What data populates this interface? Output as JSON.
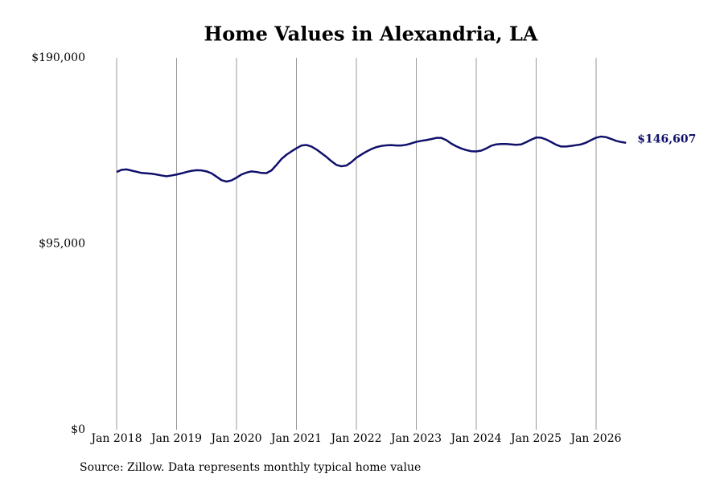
{
  "chart_data": {
    "type": "line",
    "title": "Home Values in Alexandria, LA",
    "source": "Source: Zillow. Data represents monthly typical home value",
    "color": "#10106b",
    "x": [
      "2018-01",
      "2018-02",
      "2018-03",
      "2018-04",
      "2018-05",
      "2018-06",
      "2018-07",
      "2018-08",
      "2018-09",
      "2018-10",
      "2018-11",
      "2018-12",
      "2019-01",
      "2019-02",
      "2019-03",
      "2019-04",
      "2019-05",
      "2019-06",
      "2019-07",
      "2019-08",
      "2019-09",
      "2019-10",
      "2019-11",
      "2019-12",
      "2020-01",
      "2020-02",
      "2020-03",
      "2020-04",
      "2020-05",
      "2020-06",
      "2020-07",
      "2020-08",
      "2020-09",
      "2020-10",
      "2020-11",
      "2020-12",
      "2021-01",
      "2021-02",
      "2021-03",
      "2021-04",
      "2021-05",
      "2021-06",
      "2021-07",
      "2021-08",
      "2021-09",
      "2021-10",
      "2021-11",
      "2021-12",
      "2022-01",
      "2022-02",
      "2022-03",
      "2022-04",
      "2022-05",
      "2022-06",
      "2022-07",
      "2022-08",
      "2022-09",
      "2022-10",
      "2022-11",
      "2022-12",
      "2023-01",
      "2023-02",
      "2023-03",
      "2023-04",
      "2023-05",
      "2023-06",
      "2023-07",
      "2023-08",
      "2023-09",
      "2023-10",
      "2023-11",
      "2023-12",
      "2024-01",
      "2024-02",
      "2024-03",
      "2024-04",
      "2024-05",
      "2024-06",
      "2024-07",
      "2024-08",
      "2024-09",
      "2024-10",
      "2024-11",
      "2024-12",
      "2025-01",
      "2025-02",
      "2025-03",
      "2025-04",
      "2025-05",
      "2025-06",
      "2025-07",
      "2025-08",
      "2025-09",
      "2025-10",
      "2025-11",
      "2025-12",
      "2026-01",
      "2026-02",
      "2026-03",
      "2026-04",
      "2026-05",
      "2026-06",
      "2026-07"
    ],
    "values": [
      131700,
      132800,
      133000,
      132400,
      131800,
      131200,
      131000,
      130800,
      130400,
      129900,
      129500,
      129900,
      130400,
      131000,
      131700,
      132300,
      132600,
      132500,
      132000,
      131000,
      129300,
      127500,
      126800,
      127400,
      128800,
      130400,
      131400,
      132000,
      131700,
      131200,
      131100,
      132500,
      135300,
      138300,
      140500,
      142200,
      143800,
      145200,
      145500,
      144700,
      143200,
      141300,
      139400,
      137200,
      135300,
      134600,
      135000,
      136700,
      139000,
      140600,
      142100,
      143400,
      144400,
      145000,
      145300,
      145400,
      145200,
      145200,
      145600,
      146300,
      147100,
      147600,
      148000,
      148500,
      149100,
      149100,
      148000,
      146200,
      144800,
      143700,
      142900,
      142300,
      142200,
      142600,
      143700,
      145100,
      145800,
      146000,
      146000,
      145800,
      145600,
      145800,
      146900,
      148200,
      149300,
      149200,
      148300,
      147000,
      145600,
      144700,
      144700,
      145000,
      145400,
      145800,
      146700,
      148000,
      149200,
      149800,
      149500,
      148600,
      147600,
      147000,
      146607
    ],
    "end_label": "$146,607",
    "xticks": [
      {
        "value": "2018-01",
        "label": "Jan 2018"
      },
      {
        "value": "2019-01",
        "label": "Jan 2019"
      },
      {
        "value": "2020-01",
        "label": "Jan 2020"
      },
      {
        "value": "2021-01",
        "label": "Jan 2021"
      },
      {
        "value": "2022-01",
        "label": "Jan 2022"
      },
      {
        "value": "2023-01",
        "label": "Jan 2023"
      },
      {
        "value": "2024-01",
        "label": "Jan 2024"
      },
      {
        "value": "2025-01",
        "label": "Jan 2025"
      },
      {
        "value": "2026-01",
        "label": "Jan 2026"
      }
    ],
    "ylim": [
      0,
      190000
    ],
    "yticks": [
      {
        "value": 0,
        "label": "$0"
      },
      {
        "value": 95000,
        "label": "$95,000"
      },
      {
        "value": 190000,
        "label": "$190,000"
      }
    ],
    "grid": "x"
  }
}
